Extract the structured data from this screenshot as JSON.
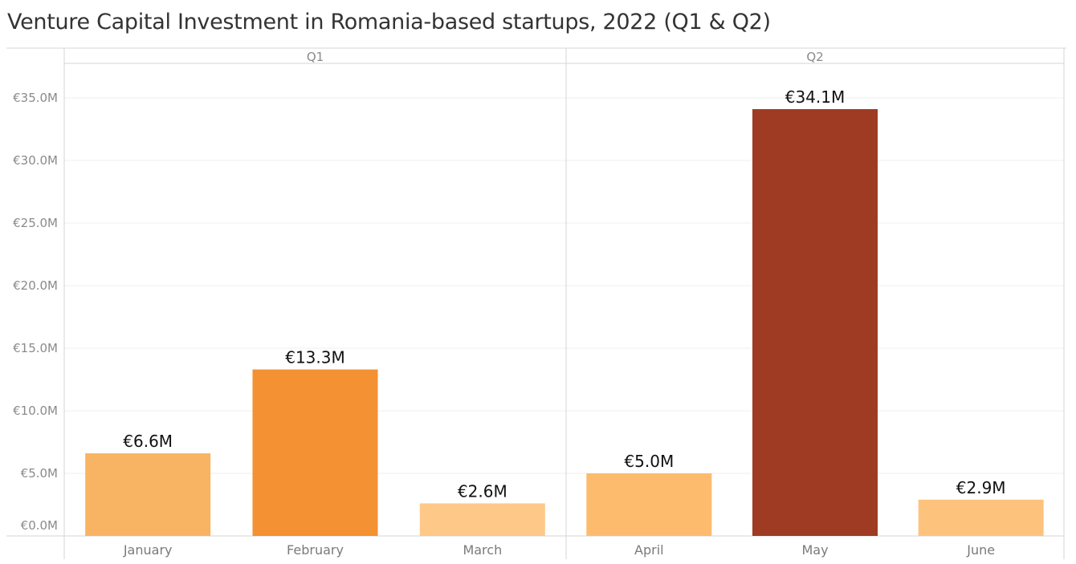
{
  "chart_data": {
    "type": "bar",
    "title": "Venture Capital Investment in Romania-based startups, 2022 (Q1 & Q2)",
    "groups": [
      "Q1",
      "Q2"
    ],
    "categories": [
      "January",
      "February",
      "March",
      "April",
      "May",
      "June"
    ],
    "category_group": [
      "Q1",
      "Q1",
      "Q1",
      "Q2",
      "Q2",
      "Q2"
    ],
    "values": [
      6.6,
      13.3,
      2.6,
      5.0,
      34.1,
      2.9
    ],
    "data_labels": [
      "€6.6M",
      "€13.3M",
      "€2.6M",
      "€5.0M",
      "€34.1M",
      "€2.9M"
    ],
    "colors": [
      "#f9b463",
      "#f49132",
      "#fec889",
      "#fdbb6e",
      "#9e3b22",
      "#fdc37d"
    ],
    "yticks": [
      0,
      5,
      10,
      15,
      20,
      25,
      30,
      35
    ],
    "ytick_labels": [
      "€0.0M",
      "€5.0M",
      "€10.0M",
      "€15.0M",
      "€20.0M",
      "€25.0M",
      "€30.0M",
      "€35.0M"
    ],
    "ylim": [
      0,
      35
    ],
    "grid": true,
    "legend": "none"
  }
}
